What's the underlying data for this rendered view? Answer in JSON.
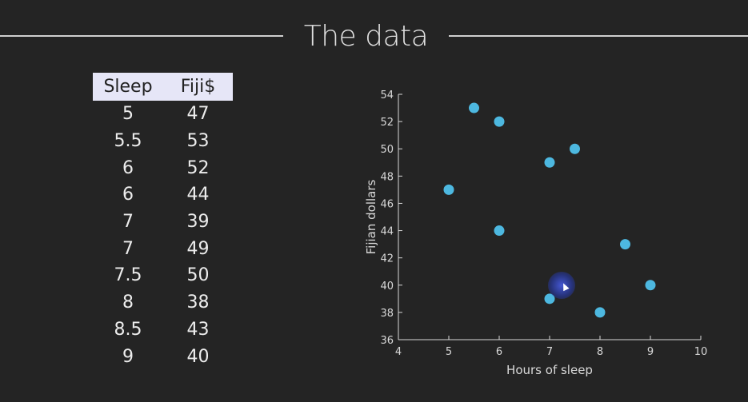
{
  "slide": {
    "title": "The data"
  },
  "table": {
    "headers": [
      "Sleep",
      "Fiji$"
    ],
    "rows": [
      [
        "5",
        "47"
      ],
      [
        "5.5",
        "53"
      ],
      [
        "6",
        "52"
      ],
      [
        "6",
        "44"
      ],
      [
        "7",
        "39"
      ],
      [
        "7",
        "49"
      ],
      [
        "7.5",
        "50"
      ],
      [
        "8",
        "38"
      ],
      [
        "8.5",
        "43"
      ],
      [
        "9",
        "40"
      ]
    ]
  },
  "chart_data": {
    "type": "scatter",
    "x": [
      5,
      5.5,
      6,
      6,
      7,
      7,
      7.5,
      8,
      8.5,
      9
    ],
    "y": [
      47,
      53,
      52,
      44,
      39,
      49,
      50,
      38,
      43,
      40
    ],
    "xlabel": "Hours of sleep",
    "ylabel": "Fijian dollars",
    "xlim": [
      4,
      10
    ],
    "ylim": [
      36,
      54
    ],
    "xticks": [
      "4",
      "5",
      "6",
      "7",
      "8",
      "9",
      "10"
    ],
    "yticks": [
      "36",
      "38",
      "40",
      "42",
      "44",
      "46",
      "48",
      "50",
      "52",
      "54"
    ],
    "grid": false,
    "marker_color": "#4db8e0",
    "axis_color": "#d8d8d8"
  }
}
